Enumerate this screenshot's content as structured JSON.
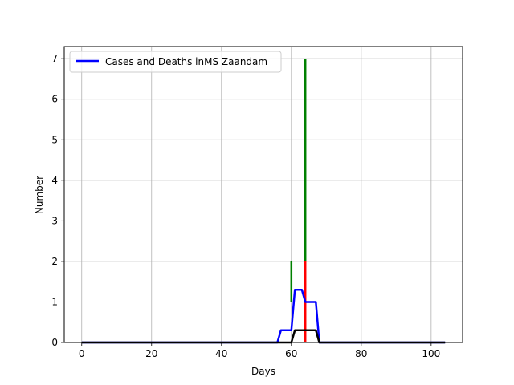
{
  "chart_data": {
    "type": "line",
    "title": "",
    "xlabel": "Days",
    "ylabel": "Number",
    "xlim": [
      -5,
      109
    ],
    "ylim": [
      0,
      7.3
    ],
    "xticks": [
      0,
      20,
      40,
      60,
      80,
      100
    ],
    "yticks": [
      0,
      1,
      2,
      3,
      4,
      5,
      6,
      7
    ],
    "grid": true,
    "legend": {
      "position": "top-left",
      "entries": [
        "Cases and Deaths inMS Zaandam"
      ]
    },
    "series": [
      {
        "name": "Cases and Deaths inMS Zaandam",
        "color": "#0000ff",
        "x": [
          0,
          56,
          57,
          58,
          59,
          60,
          61,
          62,
          63,
          64,
          65,
          66,
          67,
          68,
          69,
          104
        ],
        "y": [
          0,
          0,
          0.3,
          0.3,
          0.3,
          0.3,
          1.3,
          1.3,
          1.3,
          1.0,
          1.0,
          1.0,
          1.0,
          0,
          0,
          0
        ]
      },
      {
        "color": "#000000",
        "x": [
          0,
          60,
          61,
          62,
          63,
          64,
          65,
          66,
          67,
          68,
          104
        ],
        "y": [
          0,
          0,
          0.3,
          0.3,
          0.3,
          0.3,
          0.3,
          0.3,
          0.3,
          0,
          0
        ]
      }
    ],
    "bars": [
      {
        "x": 60,
        "y0": 1,
        "y1": 2,
        "color": "#008000"
      },
      {
        "x": 64,
        "y0": 2,
        "y1": 7,
        "color": "#008000"
      },
      {
        "x": 64,
        "y0": 0,
        "y1": 2,
        "color": "#ff0000"
      }
    ]
  }
}
